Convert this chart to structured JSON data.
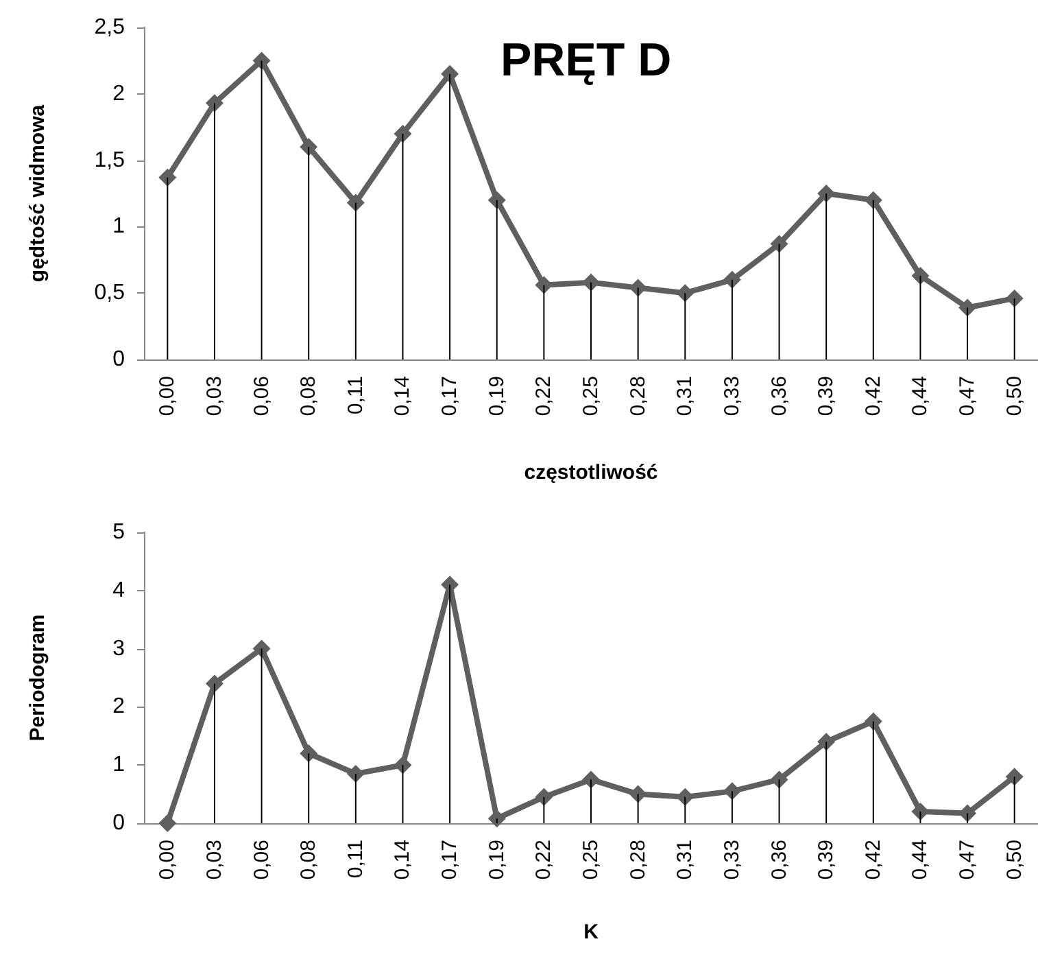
{
  "chart_data": [
    {
      "type": "line",
      "title": "PRĘT D",
      "xlabel": "częstotliwość",
      "ylabel": "gędtość widmowa",
      "categories": [
        "0,00",
        "0,03",
        "0,06",
        "0,08",
        "0,11",
        "0,14",
        "0,17",
        "0,19",
        "0,22",
        "0,25",
        "0,28",
        "0,31",
        "0,33",
        "0,36",
        "0,39",
        "0,42",
        "0,44",
        "0,47",
        "0,50"
      ],
      "series": [
        {
          "type": "bar",
          "color": "#000000",
          "values": [
            1.37,
            1.93,
            2.25,
            1.6,
            1.18,
            1.7,
            2.15,
            1.2,
            0.56,
            0.58,
            0.54,
            0.5,
            0.6,
            0.87,
            1.25,
            1.2,
            0.63,
            0.39,
            0.46
          ]
        },
        {
          "color": "#5f5f5f",
          "values": [
            1.37,
            1.93,
            2.25,
            1.6,
            1.18,
            1.7,
            2.15,
            1.2,
            0.56,
            0.58,
            0.54,
            0.5,
            0.6,
            0.87,
            1.25,
            1.2,
            0.63,
            0.39,
            0.46
          ]
        }
      ],
      "ylim": [
        0,
        2.5
      ],
      "yticks": [
        0,
        {
          "value": 0.5,
          "label": "0,5"
        },
        1,
        {
          "value": 1.5,
          "label": "1,5"
        },
        2,
        {
          "value": 2.5,
          "label": "2,5"
        }
      ],
      "grid": false,
      "marker": "diamond",
      "line_style": "solid"
    },
    {
      "type": "line",
      "xlabel": "K",
      "ylabel": "Periodogram",
      "categories": [
        "0,00",
        "0,03",
        "0,06",
        "0,08",
        "0,11",
        "0,14",
        "0,17",
        "0,19",
        "0,22",
        "0,25",
        "0,28",
        "0,31",
        "0,33",
        "0,36",
        "0,39",
        "0,42",
        "0,44",
        "0,47",
        "0,50"
      ],
      "series": [
        {
          "type": "bar",
          "color": "#000000",
          "values": [
            0,
            2.4,
            3.0,
            1.2,
            0.85,
            1.0,
            4.1,
            0.08,
            0.45,
            0.75,
            0.5,
            0.45,
            0.55,
            0.75,
            1.4,
            1.75,
            0.2,
            0.17,
            0.8
          ]
        },
        {
          "color": "#5f5f5f",
          "values": [
            0,
            2.4,
            3.0,
            1.2,
            0.85,
            1.0,
            4.1,
            0.08,
            0.45,
            0.75,
            0.5,
            0.45,
            0.55,
            0.75,
            1.4,
            1.75,
            0.2,
            0.17,
            0.8
          ]
        }
      ],
      "ylim": [
        0,
        5
      ],
      "yticks": [
        0,
        1,
        2,
        3,
        4,
        5
      ],
      "grid": false,
      "marker": "diamond",
      "line_style": "solid"
    }
  ]
}
